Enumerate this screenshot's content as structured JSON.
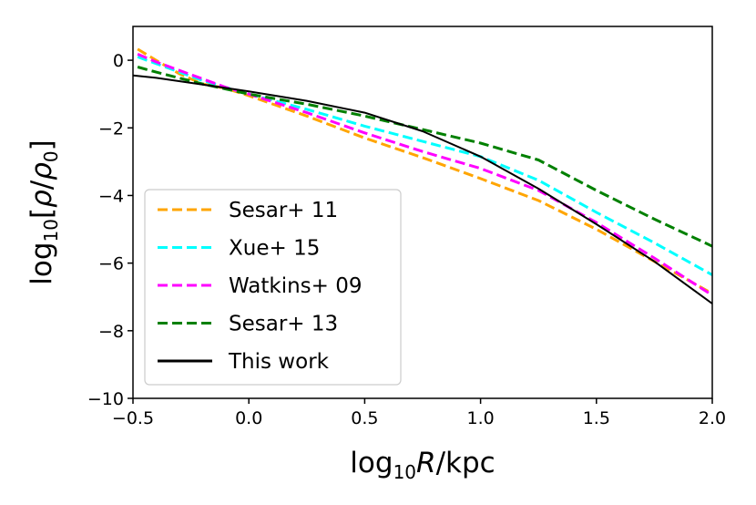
{
  "chart_data": {
    "type": "line",
    "xlabel": {
      "pre": "log",
      "sub": "10",
      "post_italic": "R",
      "post": "/kpc"
    },
    "ylabel": {
      "pre": "log",
      "sub": "10",
      "b1": "[",
      "num": "ρ",
      "slash": "/",
      "den": "ρ",
      "den_sub": "0",
      "b2": "]"
    },
    "xlim": [
      -0.5,
      2.0
    ],
    "ylim": [
      -10,
      1
    ],
    "xticks": [
      -0.5,
      0.0,
      0.5,
      1.0,
      1.5,
      2.0
    ],
    "xtick_labels": [
      "−0.5",
      "0.0",
      "0.5",
      "1.0",
      "1.5",
      "2.0"
    ],
    "yticks": [
      0,
      -2,
      -4,
      -6,
      -8,
      -10
    ],
    "ytick_labels": [
      "0",
      "−2",
      "−4",
      "−6",
      "−8",
      "−10"
    ],
    "grid": false,
    "legend_position": "lower-left",
    "series": [
      {
        "name": "Sesar+ 11",
        "color": "#ffa500",
        "dash": "dashed",
        "points": [
          [
            -0.48,
            0.33
          ],
          [
            -0.4,
            0.0
          ],
          [
            -0.3,
            -0.4
          ],
          [
            -0.2,
            -0.7
          ],
          [
            -0.1,
            -0.83
          ],
          [
            0.0,
            -1.05
          ],
          [
            0.25,
            -1.65
          ],
          [
            0.5,
            -2.3
          ],
          [
            0.75,
            -2.88
          ],
          [
            1.0,
            -3.5
          ],
          [
            1.25,
            -4.15
          ],
          [
            1.5,
            -5.0
          ],
          [
            1.75,
            -5.95
          ],
          [
            2.0,
            -6.9
          ]
        ]
      },
      {
        "name": "Xue+ 15",
        "color": "#00ffff",
        "dash": "dashed",
        "points": [
          [
            -0.48,
            0.1
          ],
          [
            -0.4,
            -0.1
          ],
          [
            -0.2,
            -0.6
          ],
          [
            -0.1,
            -0.8
          ],
          [
            0.0,
            -1.0
          ],
          [
            0.25,
            -1.45
          ],
          [
            0.5,
            -1.95
          ],
          [
            0.75,
            -2.4
          ],
          [
            1.0,
            -2.85
          ],
          [
            1.25,
            -3.55
          ],
          [
            1.5,
            -4.5
          ],
          [
            1.75,
            -5.4
          ],
          [
            2.0,
            -6.35
          ]
        ]
      },
      {
        "name": "Watkins+ 09",
        "color": "#ff00ff",
        "dash": "dashed",
        "points": [
          [
            -0.48,
            0.18
          ],
          [
            -0.4,
            -0.05
          ],
          [
            -0.2,
            -0.55
          ],
          [
            -0.1,
            -0.8
          ],
          [
            0.0,
            -1.0
          ],
          [
            0.25,
            -1.55
          ],
          [
            0.5,
            -2.15
          ],
          [
            0.75,
            -2.7
          ],
          [
            1.0,
            -3.2
          ],
          [
            1.25,
            -3.85
          ],
          [
            1.5,
            -4.8
          ],
          [
            1.75,
            -5.85
          ],
          [
            2.0,
            -6.95
          ]
        ]
      },
      {
        "name": "Sesar+ 13",
        "color": "#008000",
        "dash": "dashed",
        "points": [
          [
            -0.48,
            -0.2
          ],
          [
            -0.4,
            -0.35
          ],
          [
            -0.2,
            -0.7
          ],
          [
            -0.1,
            -0.85
          ],
          [
            0.0,
            -1.0
          ],
          [
            0.25,
            -1.3
          ],
          [
            0.5,
            -1.65
          ],
          [
            0.75,
            -2.05
          ],
          [
            1.0,
            -2.45
          ],
          [
            1.25,
            -2.95
          ],
          [
            1.5,
            -3.85
          ],
          [
            1.75,
            -4.7
          ],
          [
            2.0,
            -5.5
          ]
        ]
      },
      {
        "name": "This work",
        "color": "#000000",
        "dash": "solid",
        "points": [
          [
            -0.5,
            -0.45
          ],
          [
            -0.4,
            -0.52
          ],
          [
            -0.2,
            -0.72
          ],
          [
            0.0,
            -0.92
          ],
          [
            0.25,
            -1.2
          ],
          [
            0.5,
            -1.55
          ],
          [
            0.75,
            -2.1
          ],
          [
            1.0,
            -2.85
          ],
          [
            1.25,
            -3.8
          ],
          [
            1.5,
            -4.85
          ],
          [
            1.75,
            -5.95
          ],
          [
            2.0,
            -7.2
          ]
        ]
      }
    ]
  }
}
